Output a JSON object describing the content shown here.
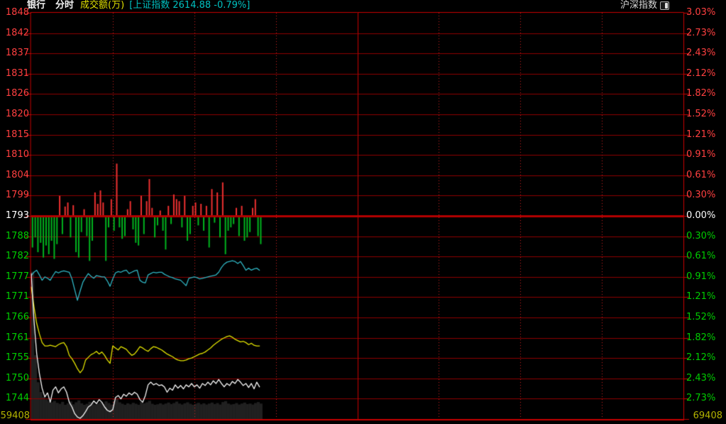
{
  "header": {
    "sector": "银行",
    "mode": "分时",
    "metric": "成交额(万)",
    "index_info": "[上证指数 2614.88 -0.79%]",
    "right_label": "沪深指数"
  },
  "axes": {
    "left_labels_above": [
      "1848",
      "1842",
      "1837",
      "1831",
      "1826",
      "1820",
      "1815",
      "1810",
      "1804",
      "1799"
    ],
    "left_label_zero": "1793",
    "left_labels_below": [
      "1788",
      "1782",
      "1777",
      "1771",
      "1766",
      "1761",
      "1755",
      "1750",
      "1744"
    ],
    "right_labels_above": [
      "3.03%",
      "2.73%",
      "2.43%",
      "2.12%",
      "1.82%",
      "1.52%",
      "1.21%",
      "0.91%",
      "0.61%",
      "0.30%"
    ],
    "right_label_zero": "0.00%",
    "right_labels_below": [
      "0.30%",
      "0.61%",
      "0.91%",
      "1.21%",
      "1.52%",
      "1.82%",
      "2.12%",
      "2.43%",
      "2.73%"
    ],
    "volume_scale_left": "59408",
    "volume_scale_right": "69408"
  },
  "colors": {
    "background": "#000000",
    "grid": "#8e0000",
    "grid_bright": "#c80000",
    "grid_dotted": "#d42020",
    "baseline": "#b40000",
    "label_up": "#ff4040",
    "label_down": "#00cc00",
    "label_zero": "#ffffff",
    "volume_label": "#b4b400",
    "bar_up": "#ee3030",
    "bar_down": "#00b41e",
    "line_cyan": "#30b6c4",
    "line_yellow": "#e2e200",
    "line_white": "#f8f8f8",
    "volume_fill": "#202020"
  },
  "chart_data": {
    "type": "line",
    "title": "银行 分时 成交额(万) [上证指数 2614.88 -0.79%]",
    "baseline_price": 1793,
    "pct_per_row": 0.303,
    "rows_above": 10,
    "rows_below": 10,
    "x_total_minutes": 240,
    "x_divisions": 8,
    "data_minutes": 85,
    "volume_scale_max": 69408,
    "legend_position": "none",
    "grid": "on",
    "series": [
      {
        "name": "minute-change-bars",
        "type": "bar",
        "unit": "percent",
        "values": [
          -0.45,
          -0.3,
          -0.52,
          -0.38,
          -0.6,
          -0.42,
          -0.55,
          -0.35,
          -0.62,
          -0.4,
          0.3,
          -0.25,
          0.14,
          0.2,
          -0.3,
          0.16,
          -0.52,
          -0.6,
          -0.22,
          0.1,
          -0.28,
          -0.65,
          -0.35,
          0.35,
          0.18,
          0.38,
          0.2,
          -0.65,
          -0.15,
          0.25,
          -0.2,
          0.78,
          -0.15,
          -0.32,
          -0.28,
          0.1,
          0.22,
          -0.18,
          -0.38,
          -0.42,
          0.3,
          -0.25,
          0.22,
          0.55,
          0.12,
          -0.3,
          -0.12,
          0.08,
          -0.2,
          -0.48,
          0.15,
          -0.1,
          0.32,
          0.25,
          0.22,
          -0.15,
          0.3,
          -0.35,
          -0.25,
          0.15,
          0.2,
          -0.12,
          0.18,
          -0.2,
          0.15,
          -0.45,
          0.4,
          -0.08,
          0.35,
          -0.3,
          0.5,
          -0.55,
          -0.2,
          -0.15,
          -0.1,
          0.12,
          -0.28,
          0.15,
          -0.35,
          -0.3,
          -0.22,
          0.12,
          0.25,
          -0.28,
          -0.4
        ]
      },
      {
        "name": "cyan-line",
        "type": "line",
        "unit": "percent",
        "values": [
          -0.89,
          -0.84,
          -0.81,
          -0.88,
          -0.96,
          -0.91,
          -0.93,
          -0.96,
          -0.89,
          -0.83,
          -0.85,
          -0.83,
          -0.82,
          -0.83,
          -0.84,
          -0.94,
          -1.1,
          -1.26,
          -1.12,
          -0.99,
          -0.92,
          -0.86,
          -0.9,
          -0.93,
          -0.89,
          -0.9,
          -0.91,
          -0.91,
          -0.97,
          -1.05,
          -0.94,
          -0.85,
          -0.83,
          -0.84,
          -0.82,
          -0.81,
          -0.86,
          -0.84,
          -0.82,
          -0.81,
          -0.96,
          -0.99,
          -1.0,
          -0.88,
          -0.86,
          -0.84,
          -0.85,
          -0.84,
          -0.84,
          -0.87,
          -0.89,
          -0.91,
          -0.92,
          -0.94,
          -0.95,
          -0.96,
          -1.0,
          -1.04,
          -0.93,
          -0.92,
          -0.91,
          -0.92,
          -0.94,
          -0.93,
          -0.92,
          -0.91,
          -0.9,
          -0.89,
          -0.88,
          -0.84,
          -0.77,
          -0.72,
          -0.69,
          -0.68,
          -0.67,
          -0.68,
          -0.71,
          -0.68,
          -0.74,
          -0.81,
          -0.78,
          -0.81,
          -0.79,
          -0.78,
          -0.81
        ]
      },
      {
        "name": "yellow-line",
        "type": "line",
        "unit": "percent",
        "values": [
          -1.06,
          -1.35,
          -1.6,
          -1.76,
          -1.89,
          -1.94,
          -1.94,
          -1.93,
          -1.94,
          -1.95,
          -1.92,
          -1.9,
          -1.89,
          -1.95,
          -2.08,
          -2.13,
          -2.2,
          -2.28,
          -2.34,
          -2.29,
          -2.15,
          -2.11,
          -2.07,
          -2.05,
          -2.02,
          -2.06,
          -2.03,
          -2.08,
          -2.15,
          -2.2,
          -1.94,
          -1.97,
          -2.0,
          -1.95,
          -1.97,
          -1.99,
          -2.04,
          -2.08,
          -2.06,
          -2.01,
          -1.95,
          -1.97,
          -2.0,
          -2.02,
          -1.98,
          -1.95,
          -1.96,
          -1.98,
          -2.0,
          -2.03,
          -2.06,
          -2.08,
          -2.1,
          -2.13,
          -2.15,
          -2.16,
          -2.16,
          -2.15,
          -2.13,
          -2.12,
          -2.1,
          -2.08,
          -2.06,
          -2.05,
          -2.03,
          -2.0,
          -1.97,
          -1.93,
          -1.9,
          -1.87,
          -1.84,
          -1.82,
          -1.8,
          -1.79,
          -1.81,
          -1.84,
          -1.86,
          -1.88,
          -1.87,
          -1.89,
          -1.92,
          -1.9,
          -1.93,
          -1.94,
          -1.94
        ]
      },
      {
        "name": "white-line",
        "type": "line",
        "unit": "percent",
        "values": [
          -0.86,
          -1.55,
          -2.05,
          -2.35,
          -2.57,
          -2.7,
          -2.64,
          -2.78,
          -2.6,
          -2.55,
          -2.64,
          -2.58,
          -2.55,
          -2.63,
          -2.78,
          -2.85,
          -2.95,
          -3.0,
          -3.03,
          -2.98,
          -2.92,
          -2.85,
          -2.82,
          -2.76,
          -2.8,
          -2.74,
          -2.78,
          -2.85,
          -2.9,
          -2.92,
          -2.89,
          -2.71,
          -2.68,
          -2.73,
          -2.66,
          -2.69,
          -2.64,
          -2.67,
          -2.63,
          -2.66,
          -2.74,
          -2.78,
          -2.68,
          -2.52,
          -2.48,
          -2.52,
          -2.5,
          -2.53,
          -2.52,
          -2.55,
          -2.63,
          -2.57,
          -2.6,
          -2.52,
          -2.57,
          -2.53,
          -2.58,
          -2.52,
          -2.55,
          -2.5,
          -2.55,
          -2.52,
          -2.57,
          -2.5,
          -2.53,
          -2.48,
          -2.52,
          -2.46,
          -2.5,
          -2.44,
          -2.5,
          -2.55,
          -2.5,
          -2.53,
          -2.47,
          -2.5,
          -2.44,
          -2.48,
          -2.53,
          -2.5,
          -2.56,
          -2.5,
          -2.58,
          -2.48,
          -2.55
        ]
      },
      {
        "name": "turnover-volume",
        "type": "bar",
        "unit": "wan",
        "values": [
          60000,
          26000,
          15000,
          11000,
          9000,
          8000,
          7200,
          6800,
          7400,
          6600,
          6200,
          7000,
          5800,
          6400,
          7200,
          6000,
          6800,
          7600,
          6400,
          5800,
          6200,
          7000,
          6600,
          5900,
          6300,
          6800,
          6100,
          7200,
          6500,
          5900,
          7400,
          8200,
          6800,
          6200,
          5800,
          6400,
          6000,
          6600,
          6200,
          5800,
          7000,
          6400,
          6800,
          7400,
          6200,
          5800,
          6000,
          6400,
          5900,
          6300,
          6700,
          6100,
          6500,
          7100,
          6300,
          5900,
          6400,
          6800,
          6200,
          5800,
          6200,
          6600,
          6000,
          6400,
          5900,
          6300,
          6700,
          6100,
          6500,
          5900,
          6900,
          7300,
          6300,
          5900,
          6100,
          6500,
          5900,
          6300,
          6700,
          6100,
          6300,
          5900,
          6500,
          6900,
          6300
        ]
      }
    ]
  }
}
